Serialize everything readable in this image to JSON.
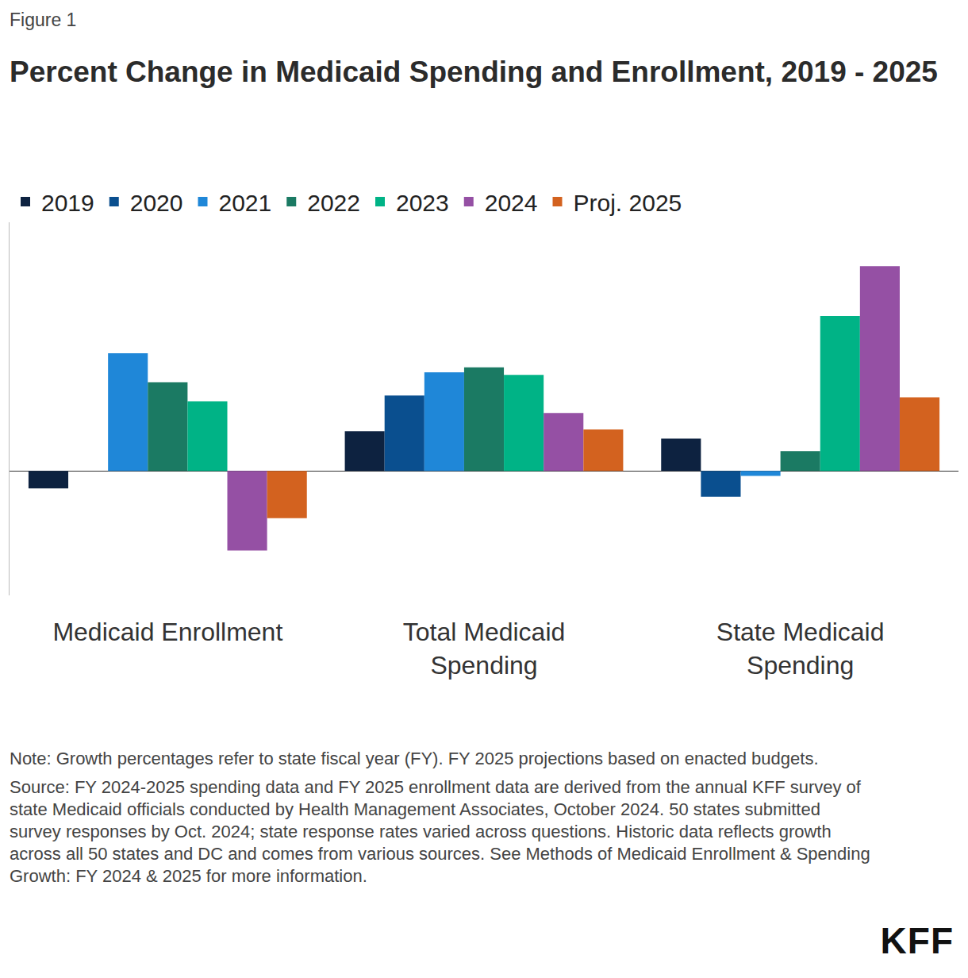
{
  "figure_label": "Figure 1",
  "chart_data": {
    "type": "bar",
    "title": "Percent Change in Medicaid Spending and Enrollment, 2019 - 2025",
    "categories": [
      "Medicaid Enrollment",
      "Total Medicaid Spending",
      "State Medicaid Spending"
    ],
    "series": [
      {
        "name": "2019",
        "color": "#0d2240",
        "values": [
          -2.1,
          4.8,
          3.9
        ]
      },
      {
        "name": "2020",
        "color": "#0a4f8f",
        "values": [
          null,
          9.1,
          -3.1
        ]
      },
      {
        "name": "2021",
        "color": "#1f87d8",
        "values": [
          14.2,
          11.9,
          -0.6
        ]
      },
      {
        "name": "2022",
        "color": "#1b7a63",
        "values": [
          10.7,
          12.5,
          2.4
        ]
      },
      {
        "name": "2023",
        "color": "#00b386",
        "values": [
          8.4,
          11.6,
          18.7
        ]
      },
      {
        "name": "2024",
        "color": "#9550a4",
        "values": [
          -9.6,
          7.0,
          24.7
        ]
      },
      {
        "name": "Proj. 2025",
        "color": "#d3621f",
        "values": [
          -5.7,
          5.0,
          8.9
        ]
      }
    ],
    "ylim": [
      -15,
      30
    ],
    "grid": false,
    "legend": "top",
    "tick_labels": "x",
    "data_labels": false
  },
  "notes": [
    "Note: Growth percentages refer to state fiscal year (FY). FY 2025 projections based on enacted budgets.",
    "Source: FY 2024-2025 spending data and FY 2025 enrollment data are derived from the annual KFF survey of state Medicaid officials conducted by Health Management Associates, October 2024. 50 states submitted survey responses by Oct. 2024; state response rates varied across questions. Historic data reflects growth across all 50 states and DC and comes from various sources. See Methods of Medicaid Enrollment & Spending Growth: FY 2024 & 2025 for more information."
  ],
  "logo": "KFF"
}
